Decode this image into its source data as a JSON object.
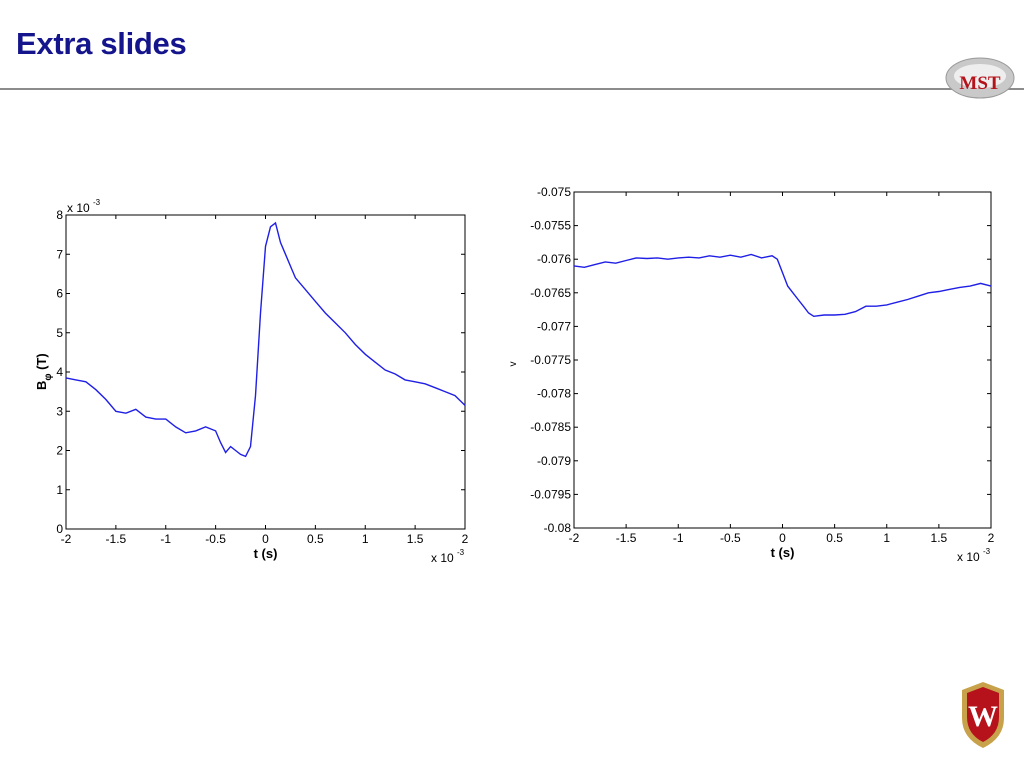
{
  "slide": {
    "title": "Extra slides",
    "logo_text": "MST",
    "crest_letter": "W"
  },
  "colors": {
    "title": "#14148c",
    "line": "#1f1fe6",
    "rule": "#8c8c8c",
    "crest_red": "#b5121b",
    "crest_gold": "#c8a24a"
  },
  "chart_data": [
    {
      "type": "line",
      "xlabel": "t (s)",
      "ylabel": "B_φ (T)",
      "x_multiplier": "x 10",
      "x_multiplier_exp": "-3",
      "y_multiplier": "x 10",
      "y_multiplier_exp": "-3",
      "xlim": [
        -2,
        2
      ],
      "ylim": [
        0,
        8
      ],
      "xticks": [
        "-2",
        "-1.5",
        "-1",
        "-0.5",
        "0",
        "0.5",
        "1",
        "1.5",
        "2"
      ],
      "yticks": [
        "0",
        "1",
        "2",
        "3",
        "4",
        "5",
        "6",
        "7",
        "8"
      ],
      "grid": false,
      "x": [
        -2.0,
        -1.9,
        -1.8,
        -1.7,
        -1.6,
        -1.5,
        -1.4,
        -1.3,
        -1.2,
        -1.1,
        -1.0,
        -0.9,
        -0.8,
        -0.7,
        -0.6,
        -0.5,
        -0.45,
        -0.4,
        -0.35,
        -0.3,
        -0.25,
        -0.2,
        -0.15,
        -0.1,
        -0.05,
        0.0,
        0.05,
        0.1,
        0.15,
        0.2,
        0.25,
        0.3,
        0.4,
        0.5,
        0.6,
        0.7,
        0.8,
        0.9,
        1.0,
        1.1,
        1.2,
        1.3,
        1.4,
        1.5,
        1.6,
        1.7,
        1.8,
        1.9,
        2.0
      ],
      "y": [
        3.85,
        3.8,
        3.75,
        3.55,
        3.3,
        3.0,
        2.95,
        3.05,
        2.85,
        2.8,
        2.8,
        2.6,
        2.45,
        2.5,
        2.6,
        2.5,
        2.2,
        1.95,
        2.1,
        2.0,
        1.9,
        1.85,
        2.1,
        3.4,
        5.5,
        7.2,
        7.7,
        7.8,
        7.3,
        7.0,
        6.7,
        6.4,
        6.1,
        5.8,
        5.5,
        5.25,
        5.0,
        4.7,
        4.45,
        4.25,
        4.05,
        3.95,
        3.8,
        3.75,
        3.7,
        3.6,
        3.5,
        3.4,
        3.15
      ]
    },
    {
      "type": "line",
      "xlabel": "t (s)",
      "ylabel": "v",
      "x_multiplier": "x 10",
      "x_multiplier_exp": "-3",
      "xlim": [
        -2,
        2
      ],
      "ylim": [
        -0.08,
        -0.075
      ],
      "xticks": [
        "-2",
        "-1.5",
        "-1",
        "-0.5",
        "0",
        "0.5",
        "1",
        "1.5",
        "2"
      ],
      "yticks": [
        "-0.075",
        "-0.0755",
        "-0.076",
        "-0.0765",
        "-0.077",
        "-0.0775",
        "-0.078",
        "-0.0785",
        "-0.079",
        "-0.0795",
        "-0.08"
      ],
      "grid": false,
      "x": [
        -2.0,
        -1.9,
        -1.8,
        -1.7,
        -1.6,
        -1.5,
        -1.4,
        -1.3,
        -1.2,
        -1.1,
        -1.0,
        -0.9,
        -0.8,
        -0.7,
        -0.6,
        -0.5,
        -0.4,
        -0.3,
        -0.2,
        -0.1,
        -0.05,
        0.0,
        0.05,
        0.1,
        0.15,
        0.2,
        0.25,
        0.3,
        0.4,
        0.5,
        0.6,
        0.7,
        0.8,
        0.9,
        1.0,
        1.1,
        1.2,
        1.3,
        1.4,
        1.5,
        1.6,
        1.7,
        1.8,
        1.9,
        2.0
      ],
      "y": [
        -0.0761,
        -0.07612,
        -0.07608,
        -0.07604,
        -0.07606,
        -0.07602,
        -0.07598,
        -0.07599,
        -0.07598,
        -0.076,
        -0.07598,
        -0.07597,
        -0.07598,
        -0.07595,
        -0.07597,
        -0.07594,
        -0.07597,
        -0.07593,
        -0.07598,
        -0.07595,
        -0.076,
        -0.0762,
        -0.0764,
        -0.0765,
        -0.0766,
        -0.0767,
        -0.0768,
        -0.07685,
        -0.07683,
        -0.07683,
        -0.07682,
        -0.07678,
        -0.0767,
        -0.0767,
        -0.07668,
        -0.07664,
        -0.0766,
        -0.07655,
        -0.0765,
        -0.07648,
        -0.07645,
        -0.07642,
        -0.0764,
        -0.07636,
        -0.0764
      ]
    }
  ]
}
